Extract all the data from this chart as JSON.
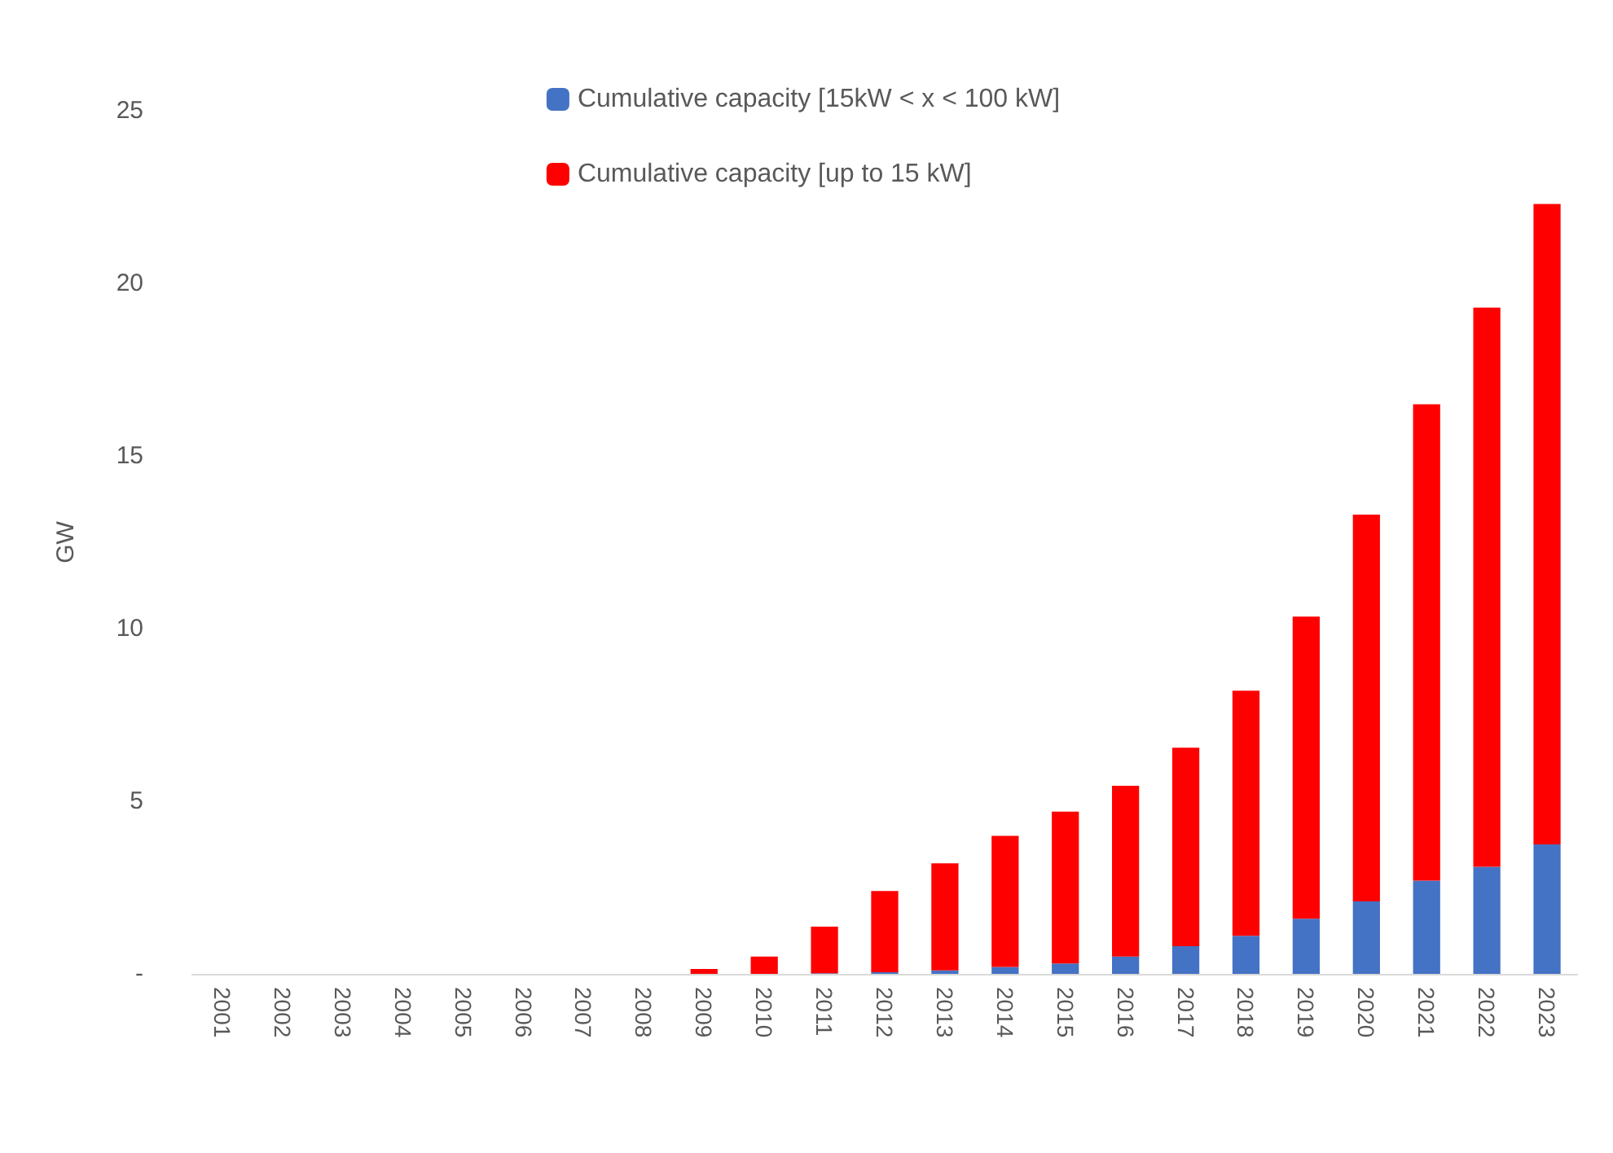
{
  "chart_data": {
    "type": "bar",
    "stacked": true,
    "ylabel": "GW",
    "categories": [
      "2001",
      "2002",
      "2003",
      "2004",
      "2005",
      "2006",
      "2007",
      "2008",
      "2009",
      "2010",
      "2011",
      "2012",
      "2013",
      "2014",
      "2015",
      "2016",
      "2017",
      "2018",
      "2019",
      "2020",
      "2021",
      "2022",
      "2023"
    ],
    "series": [
      {
        "name": "Cumulative capacity [15kW < x < 100 kW]",
        "color": "#4472c4",
        "values": [
          0,
          0,
          0,
          0,
          0,
          0,
          0,
          0,
          0,
          0,
          0.02,
          0.05,
          0.1,
          0.2,
          0.3,
          0.5,
          0.8,
          1.1,
          1.6,
          2.1,
          2.7,
          3.1,
          3.75
        ]
      },
      {
        "name": "Cumulative capacity [up to 15 kW]",
        "color": "#ff0000",
        "values": [
          0,
          0,
          0,
          0,
          0,
          0,
          0,
          0,
          0.14,
          0.5,
          1.35,
          2.35,
          3.1,
          3.8,
          4.4,
          4.95,
          5.75,
          7.1,
          8.75,
          11.2,
          13.8,
          16.2,
          18.55
        ]
      }
    ],
    "ylim": [
      0,
      25
    ],
    "yticks": [
      {
        "value": 0,
        "label": "-"
      },
      5,
      10,
      15,
      20,
      25
    ],
    "grid": false,
    "legend": "top"
  }
}
